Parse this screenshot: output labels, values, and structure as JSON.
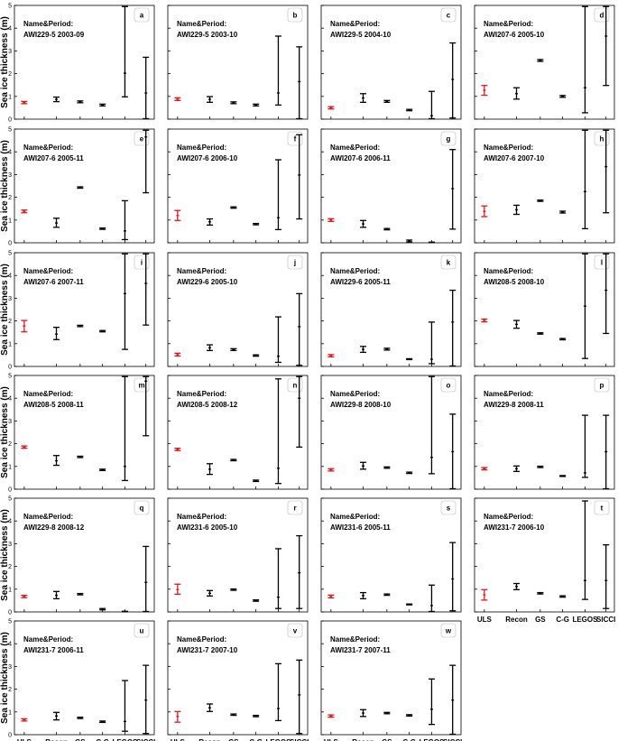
{
  "chart_data": {
    "type": "errorbar",
    "ylabel": "Sea ice thickness (m)",
    "ylim": [
      0,
      5
    ],
    "yticks": [
      "0",
      "1",
      "2",
      "3",
      "4",
      "5"
    ],
    "categories": [
      "ULS",
      "Recon",
      "GS",
      "C-G",
      "LEGOS",
      "SICCI"
    ],
    "name_prefix": "Name&Period:",
    "colors": {
      "ULS": "#e8141b",
      "other": "#000000"
    },
    "panels": [
      {
        "letter": "a",
        "name": "AWI229-5 2003-09",
        "series": [
          {
            "mean": 0.73,
            "lo": 0.68,
            "hi": 0.78
          },
          {
            "mean": 0.87,
            "lo": 0.77,
            "hi": 0.97
          },
          {
            "mean": 0.76,
            "lo": 0.72,
            "hi": 0.8
          },
          {
            "mean": 0.62,
            "lo": 0.58,
            "hi": 0.66
          },
          {
            "mean": 2.02,
            "lo": 0.98,
            "hi": 4.95
          },
          {
            "mean": 1.15,
            "lo": 0.02,
            "hi": 2.72
          }
        ]
      },
      {
        "letter": "b",
        "name": "AWI229-5 2003-10",
        "series": [
          {
            "mean": 0.88,
            "lo": 0.82,
            "hi": 0.94
          },
          {
            "mean": 0.87,
            "lo": 0.74,
            "hi": 0.99
          },
          {
            "mean": 0.72,
            "lo": 0.68,
            "hi": 0.76
          },
          {
            "mean": 0.62,
            "lo": 0.58,
            "hi": 0.66
          },
          {
            "mean": 1.15,
            "lo": 0.62,
            "hi": 3.65
          },
          {
            "mean": 1.65,
            "lo": 0.02,
            "hi": 3.18
          }
        ]
      },
      {
        "letter": "c",
        "name": "AWI229-5 2004-10",
        "series": [
          {
            "mean": 0.5,
            "lo": 0.45,
            "hi": 0.55
          },
          {
            "mean": 0.93,
            "lo": 0.74,
            "hi": 1.12
          },
          {
            "mean": 0.78,
            "lo": 0.74,
            "hi": 0.82
          },
          {
            "mean": 0.4,
            "lo": 0.37,
            "hi": 0.43
          },
          {
            "mean": 0.15,
            "lo": 0.02,
            "hi": 1.22
          },
          {
            "mean": 1.75,
            "lo": 0.05,
            "hi": 3.35
          }
        ]
      },
      {
        "letter": "d",
        "name": "AWI207-6 2005-10",
        "series": [
          {
            "mean": 1.27,
            "lo": 1.05,
            "hi": 1.48
          },
          {
            "mean": 1.12,
            "lo": 0.88,
            "hi": 1.38
          },
          {
            "mean": 2.58,
            "lo": 2.54,
            "hi": 2.62
          },
          {
            "mean": 1.0,
            "lo": 0.96,
            "hi": 1.04
          },
          {
            "mean": 1.38,
            "lo": 0.28,
            "hi": 4.95
          },
          {
            "mean": 3.65,
            "lo": 1.48,
            "hi": 4.95
          }
        ]
      },
      {
        "letter": "e",
        "name": "AWI207-6 2005-11",
        "series": [
          {
            "mean": 1.38,
            "lo": 1.32,
            "hi": 1.44
          },
          {
            "mean": 0.87,
            "lo": 0.68,
            "hi": 1.08
          },
          {
            "mean": 2.43,
            "lo": 2.4,
            "hi": 2.46
          },
          {
            "mean": 0.62,
            "lo": 0.59,
            "hi": 0.65
          },
          {
            "mean": 0.52,
            "lo": 0.14,
            "hi": 1.85
          },
          {
            "mean": 4.65,
            "lo": 2.2,
            "hi": 4.95
          }
        ]
      },
      {
        "letter": "f",
        "name": "AWI207-6 2006-10",
        "series": [
          {
            "mean": 1.2,
            "lo": 0.98,
            "hi": 1.42
          },
          {
            "mean": 0.92,
            "lo": 0.78,
            "hi": 1.05
          },
          {
            "mean": 1.55,
            "lo": 1.52,
            "hi": 1.58
          },
          {
            "mean": 0.82,
            "lo": 0.79,
            "hi": 0.85
          },
          {
            "mean": 1.1,
            "lo": 0.58,
            "hi": 3.65
          },
          {
            "mean": 2.98,
            "lo": 1.05,
            "hi": 4.75
          }
        ]
      },
      {
        "letter": "g",
        "name": "AWI207-6 2006-11",
        "series": [
          {
            "mean": 1.0,
            "lo": 0.94,
            "hi": 1.06
          },
          {
            "mean": 0.83,
            "lo": 0.68,
            "hi": 0.98
          },
          {
            "mean": 0.6,
            "lo": 0.57,
            "hi": 0.63
          },
          {
            "mean": 0.08,
            "lo": 0.04,
            "hi": 0.12
          },
          {
            "mean": 0.02,
            "lo": 0.01,
            "hi": 0.03
          },
          {
            "mean": 2.38,
            "lo": 0.6,
            "hi": 4.1
          }
        ]
      },
      {
        "letter": "h",
        "name": "AWI207-6 2007-10",
        "series": [
          {
            "mean": 1.38,
            "lo": 1.15,
            "hi": 1.62
          },
          {
            "mean": 1.45,
            "lo": 1.25,
            "hi": 1.65
          },
          {
            "mean": 1.85,
            "lo": 1.82,
            "hi": 1.88
          },
          {
            "mean": 1.35,
            "lo": 1.31,
            "hi": 1.39
          },
          {
            "mean": 2.25,
            "lo": 0.62,
            "hi": 4.95
          },
          {
            "mean": 3.35,
            "lo": 1.32,
            "hi": 4.95
          }
        ]
      },
      {
        "letter": "i",
        "name": "AWI207-6 2007-11",
        "series": [
          {
            "mean": 1.78,
            "lo": 1.52,
            "hi": 2.02
          },
          {
            "mean": 1.42,
            "lo": 1.18,
            "hi": 1.72
          },
          {
            "mean": 1.78,
            "lo": 1.75,
            "hi": 1.81
          },
          {
            "mean": 1.55,
            "lo": 1.52,
            "hi": 1.58
          },
          {
            "mean": 3.2,
            "lo": 0.75,
            "hi": 4.95
          },
          {
            "mean": 3.65,
            "lo": 1.82,
            "hi": 4.95
          }
        ]
      },
      {
        "letter": "j",
        "name": "AWI229-6 2005-10",
        "series": [
          {
            "mean": 0.52,
            "lo": 0.46,
            "hi": 0.58
          },
          {
            "mean": 0.82,
            "lo": 0.7,
            "hi": 0.95
          },
          {
            "mean": 0.74,
            "lo": 0.7,
            "hi": 0.78
          },
          {
            "mean": 0.48,
            "lo": 0.45,
            "hi": 0.51
          },
          {
            "mean": 0.45,
            "lo": 0.18,
            "hi": 2.18
          },
          {
            "mean": 1.75,
            "lo": 0.05,
            "hi": 3.2
          }
        ]
      },
      {
        "letter": "k",
        "name": "AWI229-6 2005-11",
        "series": [
          {
            "mean": 0.47,
            "lo": 0.42,
            "hi": 0.52
          },
          {
            "mean": 0.75,
            "lo": 0.62,
            "hi": 0.88
          },
          {
            "mean": 0.76,
            "lo": 0.72,
            "hi": 0.8
          },
          {
            "mean": 0.32,
            "lo": 0.3,
            "hi": 0.34
          },
          {
            "mean": 0.32,
            "lo": 0.12,
            "hi": 1.95
          },
          {
            "mean": 1.95,
            "lo": 0.02,
            "hi": 3.35
          }
        ]
      },
      {
        "letter": "l",
        "name": "AWI208-5 2008-10",
        "series": [
          {
            "mean": 2.02,
            "lo": 1.96,
            "hi": 2.08
          },
          {
            "mean": 1.85,
            "lo": 1.68,
            "hi": 2.02
          },
          {
            "mean": 1.45,
            "lo": 1.42,
            "hi": 1.48
          },
          {
            "mean": 1.2,
            "lo": 1.17,
            "hi": 1.23
          },
          {
            "mean": 2.65,
            "lo": 0.35,
            "hi": 4.95
          },
          {
            "mean": 3.35,
            "lo": 1.45,
            "hi": 4.95
          }
        ]
      },
      {
        "letter": "m",
        "name": "AWI208-5 2008-11",
        "series": [
          {
            "mean": 1.85,
            "lo": 1.8,
            "hi": 1.9
          },
          {
            "mean": 1.25,
            "lo": 1.05,
            "hi": 1.48
          },
          {
            "mean": 1.42,
            "lo": 1.39,
            "hi": 1.45
          },
          {
            "mean": 0.85,
            "lo": 0.82,
            "hi": 0.88
          },
          {
            "mean": 1.0,
            "lo": 0.38,
            "hi": 4.95
          },
          {
            "mean": 4.75,
            "lo": 2.35,
            "hi": 4.95
          }
        ]
      },
      {
        "letter": "n",
        "name": "AWI208-5 2008-12",
        "series": [
          {
            "mean": 1.75,
            "lo": 1.7,
            "hi": 1.8
          },
          {
            "mean": 0.88,
            "lo": 0.65,
            "hi": 1.12
          },
          {
            "mean": 1.28,
            "lo": 1.25,
            "hi": 1.31
          },
          {
            "mean": 0.37,
            "lo": 0.34,
            "hi": 0.4
          },
          {
            "mean": 0.92,
            "lo": 0.25,
            "hi": 4.85
          },
          {
            "mean": 4.0,
            "lo": 1.85,
            "hi": 4.95
          }
        ]
      },
      {
        "letter": "o",
        "name": "AWI229-8 2008-10",
        "series": [
          {
            "mean": 0.85,
            "lo": 0.8,
            "hi": 0.9
          },
          {
            "mean": 1.02,
            "lo": 0.88,
            "hi": 1.18
          },
          {
            "mean": 0.95,
            "lo": 0.92,
            "hi": 0.98
          },
          {
            "mean": 0.72,
            "lo": 0.69,
            "hi": 0.75
          },
          {
            "mean": 1.4,
            "lo": 0.68,
            "hi": 4.95
          },
          {
            "mean": 1.65,
            "lo": 0.02,
            "hi": 3.3
          }
        ]
      },
      {
        "letter": "p",
        "name": "AWI229-8 2008-11",
        "series": [
          {
            "mean": 0.9,
            "lo": 0.85,
            "hi": 0.95
          },
          {
            "mean": 0.9,
            "lo": 0.78,
            "hi": 1.02
          },
          {
            "mean": 0.98,
            "lo": 0.95,
            "hi": 1.01
          },
          {
            "mean": 0.58,
            "lo": 0.56,
            "hi": 0.6
          },
          {
            "mean": 0.72,
            "lo": 0.52,
            "hi": 3.25
          },
          {
            "mean": 1.65,
            "lo": 0.02,
            "hi": 3.25
          }
        ]
      },
      {
        "letter": "q",
        "name": "AWI229-8 2008-12",
        "series": [
          {
            "mean": 0.68,
            "lo": 0.63,
            "hi": 0.73
          },
          {
            "mean": 0.73,
            "lo": 0.58,
            "hi": 0.9
          },
          {
            "mean": 0.78,
            "lo": 0.75,
            "hi": 0.81
          },
          {
            "mean": 0.12,
            "lo": 0.09,
            "hi": 0.15
          },
          {
            "mean": 0.02,
            "lo": 0.01,
            "hi": 0.03
          },
          {
            "mean": 1.3,
            "lo": 0.02,
            "hi": 2.88
          }
        ]
      },
      {
        "letter": "r",
        "name": "AWI231-6 2005-10",
        "series": [
          {
            "mean": 0.98,
            "lo": 0.78,
            "hi": 1.22
          },
          {
            "mean": 0.82,
            "lo": 0.7,
            "hi": 0.94
          },
          {
            "mean": 0.98,
            "lo": 0.95,
            "hi": 1.01
          },
          {
            "mean": 0.5,
            "lo": 0.47,
            "hi": 0.53
          },
          {
            "mean": 0.65,
            "lo": 0.15,
            "hi": 2.78
          },
          {
            "mean": 1.72,
            "lo": 0.15,
            "hi": 3.35
          }
        ]
      },
      {
        "letter": "s",
        "name": "AWI231-6 2005-11",
        "series": [
          {
            "mean": 0.68,
            "lo": 0.62,
            "hi": 0.74
          },
          {
            "mean": 0.72,
            "lo": 0.58,
            "hi": 0.85
          },
          {
            "mean": 0.76,
            "lo": 0.73,
            "hi": 0.79
          },
          {
            "mean": 0.33,
            "lo": 0.31,
            "hi": 0.35
          },
          {
            "mean": 0.28,
            "lo": 0.02,
            "hi": 1.18
          },
          {
            "mean": 1.45,
            "lo": 0.05,
            "hi": 3.05
          }
        ]
      },
      {
        "letter": "t",
        "name": "AWI231-7 2006-10",
        "series": [
          {
            "mean": 0.75,
            "lo": 0.52,
            "hi": 0.98
          },
          {
            "mean": 1.12,
            "lo": 0.98,
            "hi": 1.25
          },
          {
            "mean": 0.82,
            "lo": 0.79,
            "hi": 0.85
          },
          {
            "mean": 0.68,
            "lo": 0.65,
            "hi": 0.71
          },
          {
            "mean": 1.38,
            "lo": 0.55,
            "hi": 4.88
          },
          {
            "mean": 1.38,
            "lo": 0.15,
            "hi": 2.95
          }
        ]
      },
      {
        "letter": "u",
        "name": "AWI231-7 2006-11",
        "series": [
          {
            "mean": 0.65,
            "lo": 0.6,
            "hi": 0.7
          },
          {
            "mean": 0.82,
            "lo": 0.65,
            "hi": 0.98
          },
          {
            "mean": 0.74,
            "lo": 0.71,
            "hi": 0.77
          },
          {
            "mean": 0.57,
            "lo": 0.54,
            "hi": 0.6
          },
          {
            "mean": 0.58,
            "lo": 0.15,
            "hi": 2.38
          },
          {
            "mean": 1.52,
            "lo": 0.05,
            "hi": 3.05
          }
        ]
      },
      {
        "letter": "v",
        "name": "AWI231-7 2007-10",
        "series": [
          {
            "mean": 0.8,
            "lo": 0.55,
            "hi": 1.02
          },
          {
            "mean": 1.18,
            "lo": 1.02,
            "hi": 1.35
          },
          {
            "mean": 0.88,
            "lo": 0.85,
            "hi": 0.91
          },
          {
            "mean": 0.82,
            "lo": 0.79,
            "hi": 0.85
          },
          {
            "mean": 1.15,
            "lo": 0.62,
            "hi": 3.12
          },
          {
            "mean": 1.75,
            "lo": 0.05,
            "hi": 3.28
          }
        ]
      },
      {
        "letter": "w",
        "name": "AWI231-7 2007-11",
        "series": [
          {
            "mean": 0.82,
            "lo": 0.77,
            "hi": 0.87
          },
          {
            "mean": 0.95,
            "lo": 0.8,
            "hi": 1.1
          },
          {
            "mean": 0.95,
            "lo": 0.92,
            "hi": 0.98
          },
          {
            "mean": 0.85,
            "lo": 0.82,
            "hi": 0.88
          },
          {
            "mean": 1.12,
            "lo": 0.45,
            "hi": 2.45
          },
          {
            "mean": 1.52,
            "lo": 0.02,
            "hi": 3.05
          }
        ]
      }
    ]
  }
}
